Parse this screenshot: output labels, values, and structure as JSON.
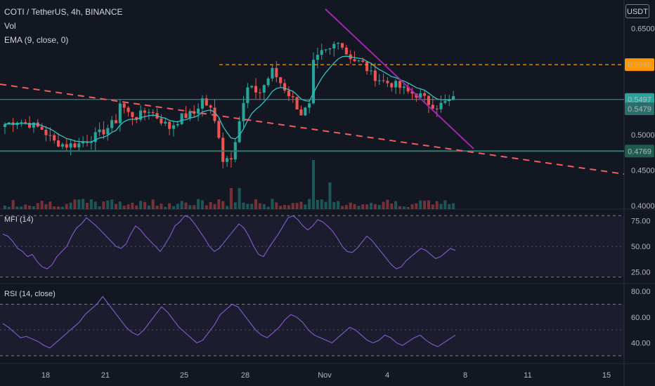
{
  "header": {
    "symbol_line": "COTI / TetherUS, 4h, BINANCE",
    "vol_label": "Vol",
    "ema_label": "EMA (9, close, 0)",
    "currency": "USDT"
  },
  "colors": {
    "background": "#131722",
    "up": "#26a69a",
    "down": "#ef5350",
    "ema": "#2ec4c4",
    "resistance_line": "#ff9800",
    "support_line": "#2e7d6b",
    "current_line": "#26a69a",
    "trend_top": "#9c27b0",
    "trend_bottom": "#f05d5e",
    "oscillator": "#7e57c2"
  },
  "price_labels": {
    "resistance": "0.5988",
    "last": "0.5497",
    "ema": "0.5479",
    "support": "0.4769"
  },
  "price_axis": [
    "0.6500",
    "0.5500",
    "0.5000",
    "0.4500",
    "0.4000"
  ],
  "mfi_axis": [
    "75.00",
    "50.00",
    "25.00"
  ],
  "rsi_axis": [
    "80.00",
    "60.00",
    "40.00"
  ],
  "mfi_title": "MFI (14)",
  "rsi_title": "RSI (14, close)",
  "time_axis": [
    "18",
    "21",
    "25",
    "28",
    "Nov",
    "4",
    "8",
    "11",
    "15"
  ],
  "chart_data": [
    {
      "type": "candlestick",
      "title": "COTI / TetherUS, 4h, BINANCE",
      "ylim": [
        0.395,
        0.69
      ],
      "resistance_level": 0.5988,
      "support_level": 0.4769,
      "last_price": 0.5497,
      "ema_value": 0.5479,
      "price_ticks": [
        0.65,
        0.55,
        0.5,
        0.45,
        0.4
      ],
      "close_path": [
        [
          0,
          0.515
        ],
        [
          3,
          0.52
        ],
        [
          6,
          0.515
        ],
        [
          9,
          0.508
        ],
        [
          12,
          0.49
        ],
        [
          15,
          0.485
        ],
        [
          18,
          0.487
        ],
        [
          21,
          0.495
        ],
        [
          24,
          0.505
        ],
        [
          27,
          0.52
        ],
        [
          28,
          0.545
        ],
        [
          30,
          0.53
        ],
        [
          32,
          0.525
        ],
        [
          35,
          0.535
        ],
        [
          38,
          0.52
        ],
        [
          40,
          0.51
        ],
        [
          43,
          0.525
        ],
        [
          46,
          0.53
        ],
        [
          48,
          0.55
        ],
        [
          50,
          0.535
        ],
        [
          52,
          0.5
        ],
        [
          53,
          0.465
        ],
        [
          55,
          0.47
        ],
        [
          57,
          0.52
        ],
        [
          59,
          0.565
        ],
        [
          62,
          0.56
        ],
        [
          65,
          0.59
        ],
        [
          68,
          0.565
        ],
        [
          70,
          0.55
        ],
        [
          72,
          0.53
        ],
        [
          74,
          0.54
        ],
        [
          75,
          0.6
        ],
        [
          77,
          0.615
        ],
        [
          79,
          0.62
        ],
        [
          81,
          0.635
        ],
        [
          83,
          0.615
        ],
        [
          85,
          0.605
        ],
        [
          87,
          0.6
        ],
        [
          89,
          0.585
        ],
        [
          92,
          0.575
        ],
        [
          95,
          0.57
        ],
        [
          98,
          0.56
        ],
        [
          101,
          0.555
        ],
        [
          103,
          0.545
        ],
        [
          105,
          0.54
        ],
        [
          107,
          0.545
        ],
        [
          109,
          0.55
        ]
      ],
      "dates": [
        "18",
        "21",
        "25",
        "28",
        "Nov",
        "4",
        "8",
        "11",
        "15"
      ]
    },
    {
      "type": "line",
      "title": "MFI (14)",
      "ylim": [
        15,
        85
      ],
      "bands": [
        80,
        20
      ],
      "values": [
        62,
        60,
        55,
        48,
        45,
        40,
        42,
        35,
        30,
        28,
        32,
        40,
        45,
        50,
        60,
        68,
        72,
        78,
        74,
        70,
        65,
        60,
        55,
        50,
        48,
        52,
        62,
        70,
        66,
        60,
        55,
        50,
        45,
        52,
        60,
        70,
        74,
        80,
        78,
        72,
        65,
        58,
        50,
        45,
        48,
        54,
        60,
        66,
        72,
        68,
        60,
        50,
        42,
        40,
        48,
        55,
        62,
        70,
        78,
        80,
        76,
        70,
        66,
        70,
        76,
        74,
        70,
        65,
        58,
        50,
        45,
        44,
        48,
        54,
        60,
        56,
        50,
        44,
        38,
        32,
        28,
        30,
        36,
        40,
        44,
        48,
        46,
        42,
        38,
        40,
        44,
        48,
        46
      ]
    },
    {
      "type": "line",
      "title": "RSI (14, close)",
      "ylim": [
        25,
        85
      ],
      "bands": [
        70,
        30
      ],
      "values": [
        55,
        52,
        48,
        44,
        45,
        43,
        41,
        38,
        36,
        40,
        44,
        48,
        52,
        56,
        62,
        66,
        70,
        76,
        70,
        64,
        58,
        52,
        48,
        46,
        50,
        56,
        62,
        68,
        64,
        58,
        52,
        48,
        44,
        40,
        42,
        48,
        54,
        62,
        66,
        70,
        68,
        62,
        56,
        50,
        46,
        44,
        48,
        52,
        58,
        62,
        60,
        56,
        50,
        46,
        44,
        42,
        40,
        44,
        48,
        52,
        50,
        46,
        42,
        40,
        42,
        46,
        44,
        40,
        38,
        41,
        44,
        46,
        42,
        39,
        37,
        40,
        43,
        46
      ]
    }
  ]
}
